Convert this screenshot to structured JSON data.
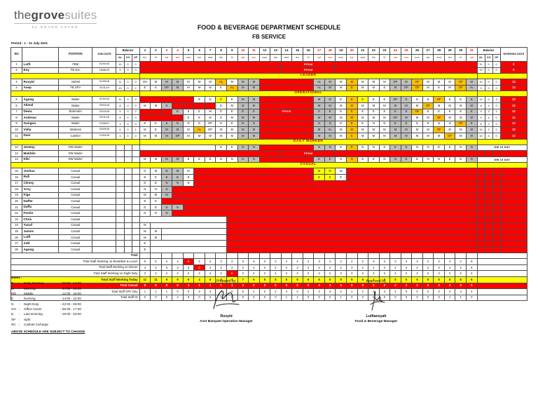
{
  "logo": {
    "wordmark_the": "the",
    "wordmark_grove": "grove",
    "wordmark_suites": "suites",
    "byline": "by GRAND ASTON"
  },
  "title": {
    "line1": "FOOD & BEVERAGE DEPARTMENT SCHEDULE",
    "line2": "FB SERVICE"
  },
  "period": "Period : 1 - 31 July 2021",
  "table": {
    "headers": {
      "no": "NO",
      "name": "",
      "position": "POSITION",
      "join": "JOIN DATE",
      "balance": "Balance",
      "al": "AL",
      "co": "CO",
      "of": "OF",
      "working": "WORKING DAYS"
    },
    "days": [
      [
        "1",
        "thu"
      ],
      [
        "2",
        "fri"
      ],
      [
        "3",
        "sat"
      ],
      [
        "4",
        "sun"
      ],
      [
        "5",
        "mon"
      ],
      [
        "6",
        "tue"
      ],
      [
        "7",
        "wed"
      ],
      [
        "8",
        "thu"
      ],
      [
        "9",
        "fri"
      ],
      [
        "10",
        "sat"
      ],
      [
        "11",
        "sun"
      ],
      [
        "12",
        "mon"
      ],
      [
        "13",
        "tue"
      ],
      [
        "14",
        "wed"
      ],
      [
        "15",
        "thu"
      ],
      [
        "16",
        "fri"
      ],
      [
        "17",
        "sat"
      ],
      [
        "18",
        "sun"
      ],
      [
        "19",
        "mon"
      ],
      [
        "20",
        "tue"
      ],
      [
        "21",
        "wed"
      ],
      [
        "22",
        "thu"
      ],
      [
        "23",
        "fri"
      ],
      [
        "24",
        "sat"
      ],
      [
        "25",
        "sun"
      ],
      [
        "26",
        "mon"
      ],
      [
        "27",
        "tue"
      ],
      [
        "28",
        "wed"
      ],
      [
        "29",
        "thu"
      ],
      [
        "30",
        "fri"
      ],
      [
        "31",
        "sat"
      ]
    ],
    "red_days": [
      3,
      4,
      10,
      11,
      17,
      18,
      20,
      24,
      25,
      31
    ],
    "rows": [
      {
        "type": "emp",
        "no": "1",
        "name": "Lutfi",
        "position": "FBM",
        "join": "01/04/16",
        "balL": [
          "10",
          "0",
          "0"
        ],
        "cells": ":r:13|PPKM:r:5|:r:13",
        "balR": [
          "11",
          "0",
          "0"
        ],
        "wd": "0"
      },
      {
        "type": "emp",
        "no": "2",
        "name": "Eny",
        "position": "FB Sec",
        "join": "18/08/19",
        "balL": [
          "9",
          "0",
          "0"
        ],
        "cells": ":r:13|PPKM:r:5|:r:13",
        "balR": [
          "10",
          "0",
          "0"
        ],
        "wd": "0"
      },
      {
        "type": "section",
        "label": "LEADER"
      },
      {
        "type": "emp",
        "no": "3",
        "name": "Rosyid",
        "position": "ABOM",
        "join": "01/09/18",
        "balL": [
          "11",
          "0",
          "0"
        ],
        "cells": "OH|M|M:g|M:g|M|M|M|AL:o|M|M:g|M:g|:r:5|AL:g|M:g|M|M:o|M|M|M|DP:g|M:g|OF:o|M|M|M|OF:o|M:g",
        "balR": [
          "10",
          "0",
          "0"
        ],
        "wd": "13"
      },
      {
        "type": "emp",
        "no": "4",
        "name": "Asep",
        "position": "FB SPV",
        "join": "02/11/19",
        "balL": [
          "10",
          "0",
          "2"
        ],
        "cells": "E|E|DP:g|M:g|M|M|M|E|AL:o|M:g|M:g|:r:5|AL:g|M:g|M|E:o|M|M|E|M:g|DP:g|OF:o|M|E|M|OF:o|AL:g",
        "balR": [
          "9",
          "0",
          "0"
        ],
        "wd": "13"
      },
      {
        "type": "section",
        "label": "OPERATIONAL"
      },
      {
        "type": "emp",
        "no": "5",
        "name": "Agung",
        "position": "Waiter",
        "join": "01/04/16",
        "balL": [
          "11",
          "0",
          "0"
        ],
        "cells": ":r:5|E|D|E:y|E|M:g|M:g|:r:5|M:g|M:g|E|E:o|E:y|E|E|DP:g|E:g|E|E|OF:o|E|E|E:g",
        "balR": [
          "12",
          "0",
          "3"
        ],
        "wd": "12"
      },
      {
        "type": "emp",
        "no": "6",
        "name": "Akmal",
        "position": "Waiter",
        "join": "09/02/18",
        "balL": [
          "8",
          "0",
          "0"
        ],
        "cells": "M|M|E:g|:r|:r|:r|:r|E|M|M:g|M:g|:r:5|M:g|M:g|M|M:o|M|M|M|M:g|M:g|M|OF:o|M|M|M|M:g",
        "balR": [
          "8",
          "4",
          "0"
        ],
        "wd": "12"
      },
      {
        "type": "emp",
        "no": "7",
        "name": "Dewa",
        "position": "Bartender",
        "join": "03/10/18",
        "balL": [
          "5",
          "0",
          "2"
        ],
        "cells": ":r|:r|:r|E:g|E|E|M|E|E|E:g|E:g|PPKM:r:5|E:g|E:g|E|E:o|E|E|E|E:g|E:g|OF:o|E|E|E|E|E:g",
        "balR": [
          "9",
          "3",
          "1"
        ],
        "wd": "12"
      },
      {
        "type": "emp",
        "no": "8",
        "name": "Andreas",
        "position": "Waiter",
        "join": "02/11/18",
        "balL": [
          "8",
          "0",
          "0"
        ],
        "cells": ":r:4|E|E|M|E|M|M:g|M:g|:r:5|M:g|M:g|M|M:o|M|M|M|DP:g|M:g|M|M|OF:o|M|M|M:g",
        "balR": [
          "9",
          "4",
          "0"
        ],
        "wd": "12"
      },
      {
        "type": "emp",
        "no": "9",
        "name": "Gungun",
        "position": "Waiter",
        "join": "13/06/21",
        "balL": [
          "3",
          "0",
          "0"
        ],
        "cells": "E|E|E:g|N:g|N|E|DP|E|E|N:g|N:g|:r:5|N:g|N:g|E|E:o|E|N|N|E:g|E:g|E|E|N|N|OF:o|E:g",
        "balR": [
          "8",
          "2",
          "0"
        ],
        "wd": "12"
      },
      {
        "type": "emp",
        "no": "10",
        "name": "Vidia",
        "position": "Waitress",
        "join": "02/09/18",
        "balL": [
          "6",
          "0",
          "1"
        ],
        "cells": "M|E|M:g|M:g|M|AL:o|DP|M|M|M:g|M:g|:r:5|M:g|AL:g|M|M:o|M|M|M|M:g|M:g|M|M|OF:o|M|M|M:g",
        "balR": [
          "10",
          "2",
          "0"
        ],
        "wd": "12"
      },
      {
        "type": "emp",
        "no": "11",
        "name": "Dani",
        "position": "Cashier",
        "join": "12/04/18",
        "balL": [
          "4",
          "0",
          "0"
        ],
        "cells": "M|M|M:g|DP:g|M|M|M|M|M|M:g|M:g|:r:5|M:g|M:g|M|E:o|M|M|M|M:g|M:g|M|M|M|OF:o|M|M:g",
        "balR": [
          "10",
          "4",
          "0"
        ],
        "wd": "12"
      },
      {
        "type": "section",
        "label": "DAILY WORKER"
      },
      {
        "type": "emp",
        "no": "12",
        "name": "Jeremy",
        "position": "DW Waiter",
        "join": "",
        "balL": [
          "",
          "",
          ""
        ],
        "cells": ":e:7|E|E|N:g|N:g|:r:5|N:g|N:g|E|E:o|N|N|E|E:g|E:g|N|N|E|E|N|N:g",
        "right_label": "DW 10 DAY"
      },
      {
        "type": "emp",
        "no": "13",
        "name": "Mukhlis",
        "position": "DW Waiter",
        "join": "",
        "balL": [
          "",
          "",
          ""
        ],
        "cells": ":r:13|PPKM:r:5|:r:13",
        "red_right": true
      },
      {
        "type": "emp",
        "no": "14",
        "name": "Kiki",
        "position": "DW Waiter",
        "join": "",
        "balL": [
          "",
          "",
          ""
        ],
        "cells": "M|M|M:g|M:g|E|E|E|N|N|N:g|N:g|:r:5|E:g|E:g|N|N:o|E|E|N|N:g|E:g|E|N|N|E|E|N:g",
        "right_label": "DW 10 DAY"
      },
      {
        "type": "section",
        "label": "CASUAL"
      },
      {
        "type": "emp",
        "no": "15",
        "name": "Joshua",
        "position": "Casual",
        "join": "",
        "balL": [
          "",
          "",
          ""
        ],
        "cells": "D|M|M:g|M:g|M|:r:11|M:y|M:y|M|:r:12",
        "red_right": true
      },
      {
        "type": "emp",
        "no": "16",
        "name": "Rafi",
        "position": "Casual",
        "join": "",
        "balL": [
          "",
          "",
          ""
        ],
        "cells": "E|E|E:g|E:g|E|:r:11|E:y|E:y|E|:r:12",
        "red_right": true
      },
      {
        "type": "emp",
        "no": "17",
        "name": "Clessy",
        "position": "Casual",
        "join": "",
        "balL": [
          "",
          "",
          ""
        ],
        "cells": "D|D|N:g|N:g|N|:r:26",
        "red_right": true
      },
      {
        "type": "emp",
        "no": "18",
        "name": "Arsy",
        "position": "Casual",
        "join": "",
        "balL": [
          "",
          "",
          ""
        ],
        "cells": "N|N|N:g|:r:28",
        "red_right": true
      },
      {
        "type": "emp",
        "no": "19",
        "name": "Figo",
        "position": "Casual",
        "join": "",
        "balL": [
          "",
          "",
          ""
        ],
        "cells": "M|M|M:g|:r:28",
        "red_right": true
      },
      {
        "type": "emp",
        "no": "20",
        "name": "Daffer",
        "position": "Casual",
        "join": "",
        "balL": [
          "",
          "",
          ""
        ],
        "cells": "E|E|:r:29",
        "red_right": true
      },
      {
        "type": "emp",
        "no": "21",
        "name": "Daffa",
        "position": "Casual",
        "join": "",
        "balL": [
          "",
          "",
          ""
        ],
        "cells": "D|D|N:g|N:g|:r:27",
        "red_right": true
      },
      {
        "type": "emp",
        "no": "22",
        "name": "Fostin",
        "position": "Casual",
        "join": "",
        "balL": [
          "",
          "",
          ""
        ],
        "cells": "N|N|N:g|:r:28",
        "red_right": true
      },
      {
        "type": "emp",
        "no": "23",
        "name": "Chris",
        "position": "Casual",
        "join": "",
        "balL": [
          "",
          "",
          ""
        ],
        "cells": ":e:8|:r:23",
        "red_right": true
      },
      {
        "type": "emp",
        "no": "24",
        "name": "Yusuf",
        "position": "Casual",
        "join": "",
        "balL": [
          "",
          "",
          ""
        ],
        "cells": "M|:e:7|:r:23",
        "red_right": true
      },
      {
        "type": "emp",
        "no": "25",
        "name": "Jannis",
        "position": "Casual",
        "join": "",
        "balL": [
          "",
          "",
          ""
        ],
        "cells": "M|M|:e:6|:r:23",
        "red_right": true
      },
      {
        "type": "emp",
        "no": "26",
        "name": "Lutfi",
        "position": "Casual",
        "join": "",
        "balL": [
          "",
          "",
          ""
        ],
        "cells": "M|M|:e:6|:r:23",
        "red_right": true
      },
      {
        "type": "emp",
        "no": "27",
        "name": "Adit",
        "position": "Casual",
        "join": "",
        "balL": [
          "",
          "",
          ""
        ],
        "cells": "E|:e:7|:r:23",
        "red_right": true
      },
      {
        "type": "emp",
        "no": "28",
        "name": "Agung",
        "position": "Casual",
        "join": "",
        "balL": [
          "",
          "",
          ""
        ],
        "cells": "E|:e:7|:r:23",
        "red_right": true
      },
      {
        "type": "total",
        "label": "Total"
      },
      {
        "type": "sum",
        "label": "Total Staff Working on Breakfast & Lunch",
        "style": "plain",
        "red_at": [
          5
        ],
        "values": [
          5,
          5,
          4,
          4,
          0,
          2,
          2,
          2,
          2,
          3,
          3,
          3,
          3,
          2,
          2,
          3,
          3,
          2,
          2,
          2,
          2,
          3,
          2,
          2,
          3,
          3,
          2,
          2,
          2,
          2,
          9
        ]
      },
      {
        "type": "sum",
        "label": "Total Staff Working on Dinner",
        "style": "plain",
        "red_at": [
          6
        ],
        "values": [
          4,
          4,
          3,
          3,
          5,
          0,
          2,
          2,
          2,
          2,
          2,
          2,
          2,
          2,
          3,
          2,
          2,
          2,
          2,
          3,
          2,
          2,
          2,
          2,
          3,
          2,
          2,
          2,
          2,
          2,
          6
        ]
      },
      {
        "type": "sum",
        "label": "Total Staff Working on Night Duty",
        "style": "plain",
        "red_at": [
          9
        ],
        "values": [
          2,
          2,
          2,
          2,
          2,
          2,
          2,
          2,
          0,
          2,
          2,
          2,
          2,
          2,
          2,
          2,
          2,
          2,
          2,
          2,
          2,
          2,
          2,
          2,
          2,
          2,
          2,
          2,
          2,
          2,
          2
        ]
      },
      {
        "type": "sum",
        "label": "Total Staff Working Today",
        "style": "yellow",
        "red_at": [],
        "values": [
          11,
          11,
          9,
          9,
          6,
          4,
          6,
          6,
          4,
          7,
          6,
          5,
          5,
          5,
          5,
          6,
          6,
          5,
          5,
          5,
          5,
          7,
          6,
          5,
          5,
          5,
          5,
          5,
          5,
          6,
          6
        ]
      },
      {
        "type": "sum",
        "label": "Total Casual",
        "style": "red",
        "red_at": [],
        "values": [
          8,
          8,
          8,
          8,
          1,
          1,
          1,
          1,
          1,
          3,
          0,
          0,
          0,
          0,
          0,
          0,
          4,
          4,
          4,
          0,
          0,
          2,
          2,
          2,
          2,
          2,
          2,
          2,
          2,
          0,
          0
        ]
      },
      {
        "type": "sum",
        "label": "Total Staff OFF Day",
        "style": "plain",
        "red_at": [],
        "values": [
          1,
          1,
          1,
          0,
          0,
          3,
          4,
          4,
          0,
          0,
          1,
          2,
          2,
          4,
          4,
          2,
          2,
          4,
          2,
          1,
          2,
          2,
          4,
          4,
          0,
          0,
          2,
          2,
          4,
          4,
          2
        ]
      },
      {
        "type": "sum",
        "label": "Total Staff IN",
        "style": "plain",
        "red_at": [],
        "values": [
          0,
          0,
          0,
          4,
          8,
          0,
          0,
          0,
          0,
          8,
          0,
          0,
          0,
          1,
          1,
          0,
          0,
          0,
          1,
          0,
          0,
          0,
          0,
          0,
          0,
          0,
          0,
          0,
          1,
          1,
          3
        ]
      }
    ]
  },
  "notes": {
    "heading": "Notes :",
    "items": [
      {
        "code": "D",
        "desc": "Early Morning",
        "time": "- 06:00 - 14:00"
      },
      {
        "code": "M",
        "desc": "Morning",
        "time": "- 07:00 - 15:00"
      },
      {
        "code": "MD",
        "desc": "Middle",
        "time": "- 12:00 - 20:00"
      },
      {
        "code": "E",
        "desc": "Evening",
        "time": "- 14:00 - 22:00"
      },
      {
        "code": "N",
        "desc": "Night Duty",
        "time": "- 22:00 - 06:00"
      },
      {
        "code": "OH",
        "desc": "Office Hours",
        "time": "- 08:30 - 17:30"
      },
      {
        "code": "E.",
        "desc": "Late Evening",
        "time": "- 19:00 - 03:00"
      },
      {
        "code": "SP",
        "desc": "Split",
        "time": ""
      },
      {
        "code": "NC",
        "desc": "Cashier Incharge",
        "time": ""
      }
    ],
    "footer": "ABOVE SCHEDULE ARE SUBJECT TO CHANGE"
  },
  "signatures": {
    "prepared": {
      "label": "Prepared by,",
      "name": "Rosyid",
      "title": "Asst Banquet Operation Manager"
    },
    "approved": {
      "label": "Approved by,",
      "name": "Lutfiansyah",
      "title": "Food & Beverage Manager"
    }
  }
}
